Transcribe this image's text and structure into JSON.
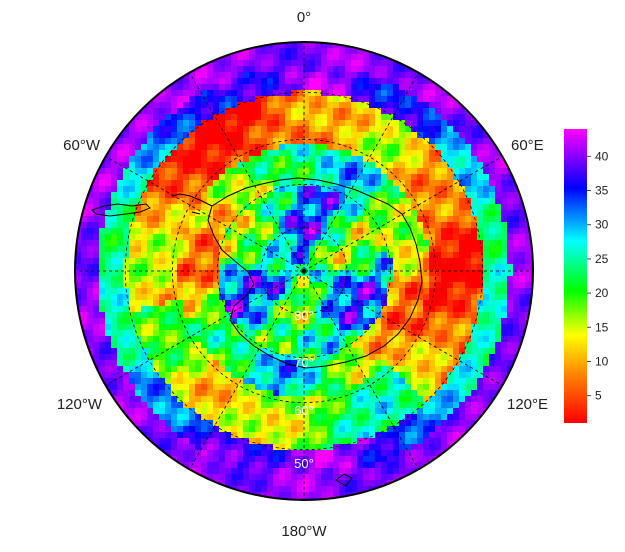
{
  "map": {
    "projection": "south-polar-stereographic",
    "center": "South Pole",
    "longitude_labels": [
      {
        "text": "0°",
        "lon": 0
      },
      {
        "text": "60°E",
        "lon": 60
      },
      {
        "text": "120°E",
        "lon": 120
      },
      {
        "text": "180°W",
        "lon": 180
      },
      {
        "text": "120°W",
        "lon": -120
      },
      {
        "text": "60°W",
        "lon": -60
      }
    ],
    "latitude_labels": [
      {
        "text": "80°",
        "lat": -80
      },
      {
        "text": "70°",
        "lat": -70
      },
      {
        "text": "60°",
        "lat": -60
      },
      {
        "text": "50°",
        "lat": -50
      }
    ],
    "graticule_latitudes": [
      -80,
      -70,
      -60,
      -50
    ],
    "graticule_longitudes": [
      0,
      30,
      60,
      90,
      120,
      150,
      180,
      -150,
      -120,
      -90,
      -60,
      -30
    ],
    "outer_latitude": -40,
    "grid_style": "dashed",
    "coastlines": true,
    "palette": "rainbow-red-to-magenta"
  },
  "colorbar": {
    "min": 1,
    "max": 44,
    "ticks": [
      {
        "value": 5,
        "label": "5"
      },
      {
        "value": 10,
        "label": "10"
      },
      {
        "value": 15,
        "label": "15"
      },
      {
        "value": 20,
        "label": "20"
      },
      {
        "value": 25,
        "label": "25"
      },
      {
        "value": 30,
        "label": "30"
      },
      {
        "value": 35,
        "label": "35"
      },
      {
        "value": 40,
        "label": "40"
      }
    ],
    "colors": [
      "#ff0000",
      "#ff8000",
      "#ffff00",
      "#00ff00",
      "#00ffff",
      "#0000ff",
      "#ff00ff"
    ],
    "orientation": "vertical",
    "placement": "right"
  }
}
